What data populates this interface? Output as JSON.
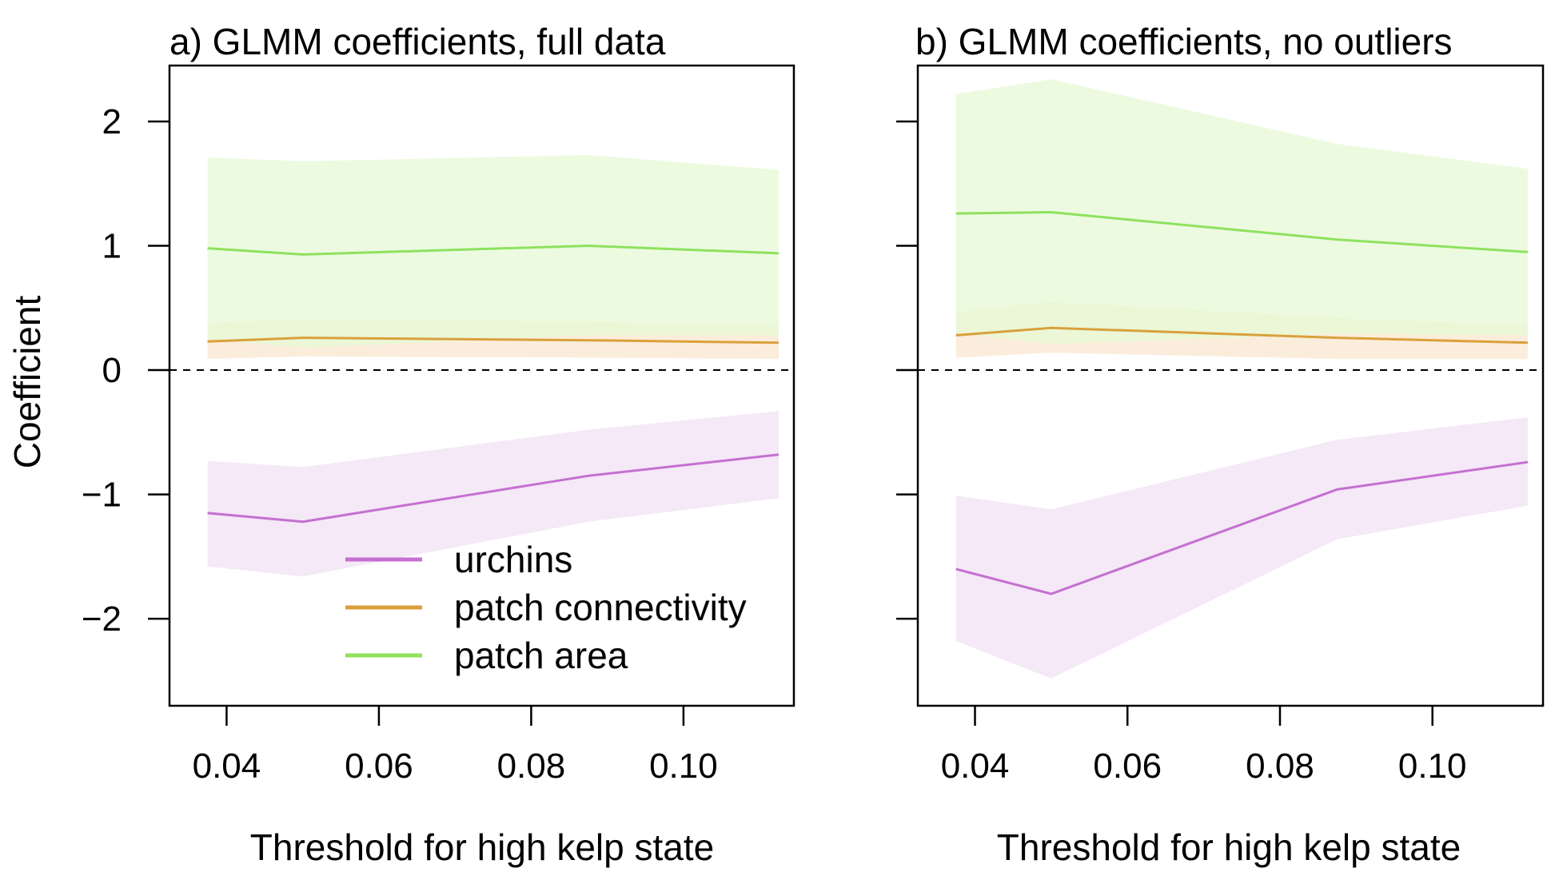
{
  "chart_data": [
    {
      "type": "line",
      "title": "a) GLMM coefficients, full data",
      "xlabel": "Threshold for high kelp state",
      "ylabel": "Coefficient",
      "xlim": [
        0.0325,
        0.1145
      ],
      "ylim": [
        -2.7,
        2.45
      ],
      "xticks": [
        0.04,
        0.06,
        0.08,
        0.1
      ],
      "xtick_labels": [
        "0.04",
        "0.06",
        "0.08",
        "0.10"
      ],
      "yticks": [
        -2,
        -1,
        0,
        1,
        2
      ],
      "ytick_labels": [
        "−2",
        "−1",
        "0",
        "1",
        "2"
      ],
      "x": [
        0.0375,
        0.05,
        0.0875,
        0.1125
      ],
      "reference_line": 0,
      "series": [
        {
          "name": "urchins",
          "color": "#c470d0",
          "band_color": "#f1e0f4",
          "values": [
            -1.15,
            -1.22,
            -0.85,
            -0.68
          ],
          "lower": [
            -1.58,
            -1.66,
            -1.22,
            -1.03
          ],
          "upper": [
            -0.73,
            -0.78,
            -0.48,
            -0.33
          ]
        },
        {
          "name": "patch connectivity",
          "color": "#daa03c",
          "band_color": "#fae7cf",
          "values": [
            0.23,
            0.26,
            0.24,
            0.22
          ],
          "lower": [
            0.09,
            0.11,
            0.1,
            0.09
          ],
          "upper": [
            0.38,
            0.41,
            0.39,
            0.36
          ]
        },
        {
          "name": "patch area",
          "color": "#8ee25e",
          "band_color": "#e6f9d6",
          "values": [
            0.98,
            0.93,
            1.0,
            0.94
          ],
          "lower": [
            0.25,
            0.18,
            0.28,
            0.28
          ],
          "upper": [
            1.71,
            1.68,
            1.73,
            1.61
          ]
        }
      ],
      "legend": {
        "placement": "bottom-center"
      }
    },
    {
      "type": "line",
      "title": "b) GLMM coefficients, no outliers",
      "xlabel": "Threshold for high kelp state",
      "ylabel": "",
      "xlim": [
        0.0325,
        0.1145
      ],
      "ylim": [
        -2.7,
        2.45
      ],
      "xticks": [
        0.04,
        0.06,
        0.08,
        0.1
      ],
      "xtick_labels": [
        "0.04",
        "0.06",
        "0.08",
        "0.10"
      ],
      "yticks": [
        -2,
        -1,
        0,
        1,
        2
      ],
      "x": [
        0.0375,
        0.05,
        0.0875,
        0.1125
      ],
      "reference_line": 0,
      "series": [
        {
          "name": "urchins",
          "color": "#c470d0",
          "band_color": "#f1e0f4",
          "values": [
            -1.6,
            -1.8,
            -0.96,
            -0.74
          ],
          "lower": [
            -2.18,
            -2.48,
            -1.36,
            -1.09
          ],
          "upper": [
            -1.01,
            -1.12,
            -0.56,
            -0.38
          ]
        },
        {
          "name": "patch connectivity",
          "color": "#daa03c",
          "band_color": "#fae7cf",
          "values": [
            0.28,
            0.34,
            0.26,
            0.22
          ],
          "lower": [
            0.1,
            0.14,
            0.09,
            0.09
          ],
          "upper": [
            0.47,
            0.55,
            0.42,
            0.36
          ]
        },
        {
          "name": "patch area",
          "color": "#8ee25e",
          "band_color": "#e6f9d6",
          "values": [
            1.26,
            1.27,
            1.05,
            0.95
          ],
          "lower": [
            0.3,
            0.21,
            0.29,
            0.28
          ],
          "upper": [
            2.22,
            2.34,
            1.82,
            1.62
          ]
        }
      ]
    }
  ]
}
